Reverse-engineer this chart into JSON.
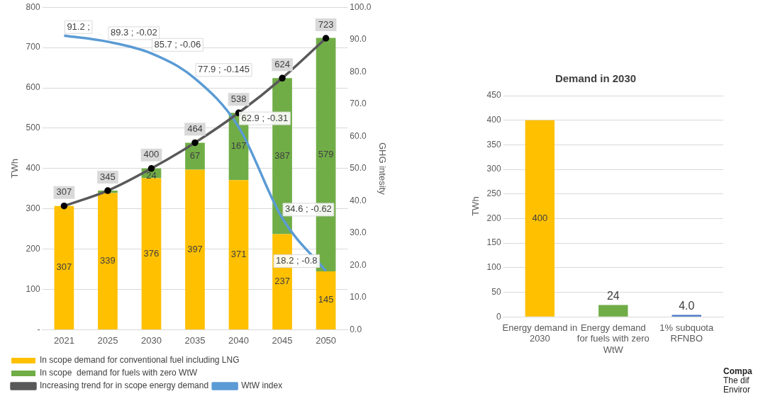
{
  "chart_data": [
    {
      "type": "bar",
      "categories": [
        "2021",
        "2025",
        "2030",
        "2035",
        "2040",
        "2045",
        "2050"
      ],
      "stacked": true,
      "ylabel": "TWh",
      "y2label": "GHG intesity",
      "ylim": [
        0,
        800
      ],
      "yticks": [
        {
          "value": 0,
          "label": "-"
        },
        100,
        200,
        300,
        400,
        500,
        600,
        700,
        800
      ],
      "y2lim": [
        0,
        100
      ],
      "y2ticks": [
        {
          "value": 0,
          "label": "0.0"
        },
        {
          "value": 10,
          "label": "10.0"
        },
        {
          "value": 20,
          "label": "20.0"
        },
        {
          "value": 30,
          "label": "30.0"
        },
        {
          "value": 40,
          "label": "40.0"
        },
        {
          "value": 50,
          "label": "50.0"
        },
        {
          "value": 60,
          "label": "60.0"
        },
        {
          "value": 70,
          "label": "70.0"
        },
        {
          "value": 80,
          "label": "80.0"
        },
        {
          "value": 90,
          "label": "90.0"
        },
        {
          "value": 100,
          "label": "100.0"
        }
      ],
      "grid": "y",
      "legend": "bottom",
      "series": [
        {
          "name": "In scope demand for conventional fuel including LNG",
          "type": "bar",
          "color": "#ffc000",
          "values": [
            307,
            339,
            376,
            397,
            371,
            237,
            145
          ],
          "value_labels": [
            "307",
            "339",
            "376",
            "397",
            "371",
            "237",
            "145"
          ]
        },
        {
          "name": "In scope  demand for fuels with zero WtW",
          "type": "bar",
          "color": "#70ad47",
          "values": [
            0,
            6,
            24,
            67,
            167,
            387,
            579
          ],
          "value_labels": [
            null,
            null,
            "24",
            "67",
            "167",
            "387",
            "579"
          ]
        },
        {
          "name": "Increasing trend for in scope energy demand",
          "type": "line",
          "color": "#595959",
          "marker": "circle",
          "values": [
            307,
            345,
            400,
            464,
            538,
            624,
            723
          ],
          "value_labels": [
            "307",
            "345",
            "400",
            "464",
            "538",
            "624",
            "723"
          ]
        },
        {
          "name": "WtW index",
          "type": "line",
          "axis": "y2",
          "color": "#5b9bd5",
          "marker": "none",
          "values": [
            91.2,
            89.3,
            85.7,
            77.9,
            62.9,
            34.6,
            18.2
          ],
          "value_labels": [
            "91.2 ;",
            "89.3 ; -0.02",
            "85.7 ; -0.06",
            "77.9 ; -0.145",
            "62.9 ; -0.31",
            "34.6 ; -0.62",
            "18.2 ; -0.8"
          ]
        }
      ]
    },
    {
      "type": "bar",
      "title": "Demand in 2030",
      "ylabel": "TWh",
      "categories": [
        "Energy demand in 2030",
        "Energy demand for fuels with zero WtW",
        "1% subquota RFNBO"
      ],
      "values": [
        400,
        24,
        4
      ],
      "colors": [
        "#ffc000",
        "#70ad47",
        "#4472c4"
      ],
      "value_labels": [
        "400",
        "24",
        "4.0"
      ],
      "ylim": [
        0,
        450
      ],
      "yticks": [
        0,
        50,
        100,
        150,
        200,
        250,
        300,
        350,
        400,
        450
      ],
      "grid": "y",
      "annotations": [
        "Compa",
        "The dif",
        "Enviror"
      ]
    }
  ]
}
